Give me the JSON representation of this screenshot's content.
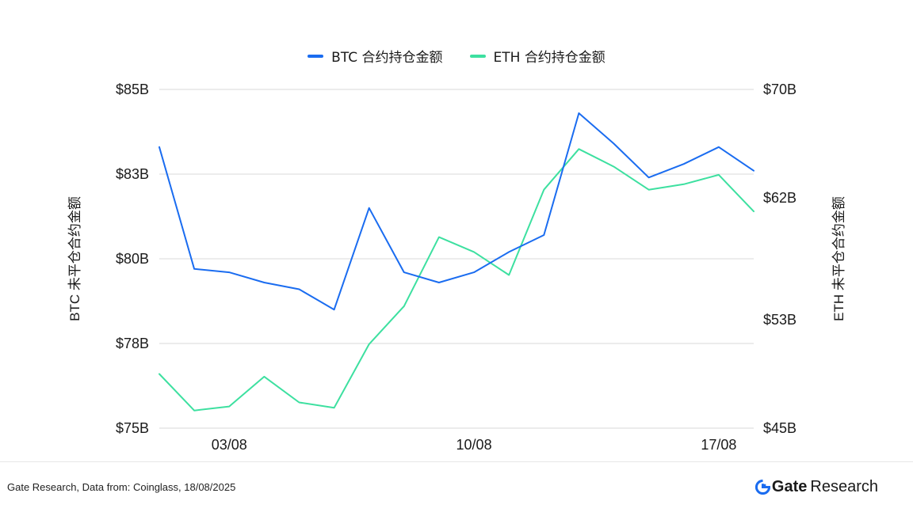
{
  "chart_data": {
    "type": "line",
    "series": [
      {
        "name": "BTC 合约持仓金额",
        "axis": "left",
        "color": "#1a6cf0",
        "values": [
          83.3,
          79.7,
          79.6,
          79.3,
          79.1,
          78.5,
          81.5,
          79.6,
          79.3,
          79.6,
          80.2,
          80.7,
          84.3,
          83.4,
          82.4,
          82.8,
          83.3,
          82.6
        ]
      },
      {
        "name": "ETH 合约持仓金额",
        "axis": "right",
        "color": "#3de0a0",
        "values": [
          49.0,
          46.3,
          46.6,
          48.8,
          46.9,
          46.5,
          51.2,
          54.0,
          59.1,
          58.0,
          56.3,
          62.6,
          65.6,
          64.3,
          62.6,
          63.0,
          63.7,
          61.0
        ]
      }
    ],
    "x_ticks": [
      {
        "index": 2,
        "label": "03/08"
      },
      {
        "index": 9,
        "label": "10/08"
      },
      {
        "index": 16,
        "label": "17/08"
      }
    ],
    "left_axis": {
      "label": "BTC 未平仓合约金额",
      "min": 75,
      "max": 85,
      "ticks": [
        {
          "v": 85,
          "label": "$85B"
        },
        {
          "v": 82.5,
          "label": "$83B"
        },
        {
          "v": 80,
          "label": "$80B"
        },
        {
          "v": 77.5,
          "label": "$78B"
        },
        {
          "v": 75,
          "label": "$75B"
        }
      ]
    },
    "right_axis": {
      "label": "ETH 未平仓合约金额",
      "min": 45,
      "max": 70,
      "ticks": [
        {
          "v": 70,
          "label": "$70B"
        },
        {
          "v": 62,
          "label": "$62B"
        },
        {
          "v": 53,
          "label": "$53B"
        },
        {
          "v": 45,
          "label": "$45B"
        }
      ]
    },
    "grid": true,
    "legend_position": "top-center"
  },
  "legend": {
    "btc": "BTC 合约持仓金额",
    "eth": "ETH 合约持仓金额"
  },
  "footer": {
    "source": "Gate Research, Data from: Coinglass, 18/08/2025",
    "brand_name": "Gate",
    "brand_sub": "Research"
  },
  "colors": {
    "btc": "#1a6cf0",
    "eth": "#3de0a0",
    "grid": "#d9d9d9",
    "brand_blue": "#1a6cf0"
  }
}
